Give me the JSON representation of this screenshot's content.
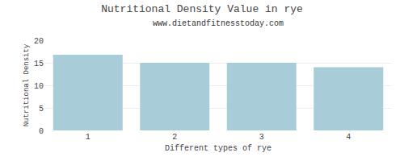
{
  "chart_data": {
    "type": "bar",
    "title": "Nutritional Density Value in rye",
    "subtitle": "www.dietandfitnesstoday.com",
    "xlabel": "Different types of rye",
    "ylabel": "Nutritional Density",
    "categories": [
      1,
      2,
      3,
      4
    ],
    "values": [
      16.8,
      15.0,
      15.0,
      14.0
    ],
    "color": "#a8cdd8",
    "ylim": [
      0,
      20
    ],
    "yticks": [
      0,
      5,
      10,
      15,
      20
    ],
    "grid": true
  }
}
